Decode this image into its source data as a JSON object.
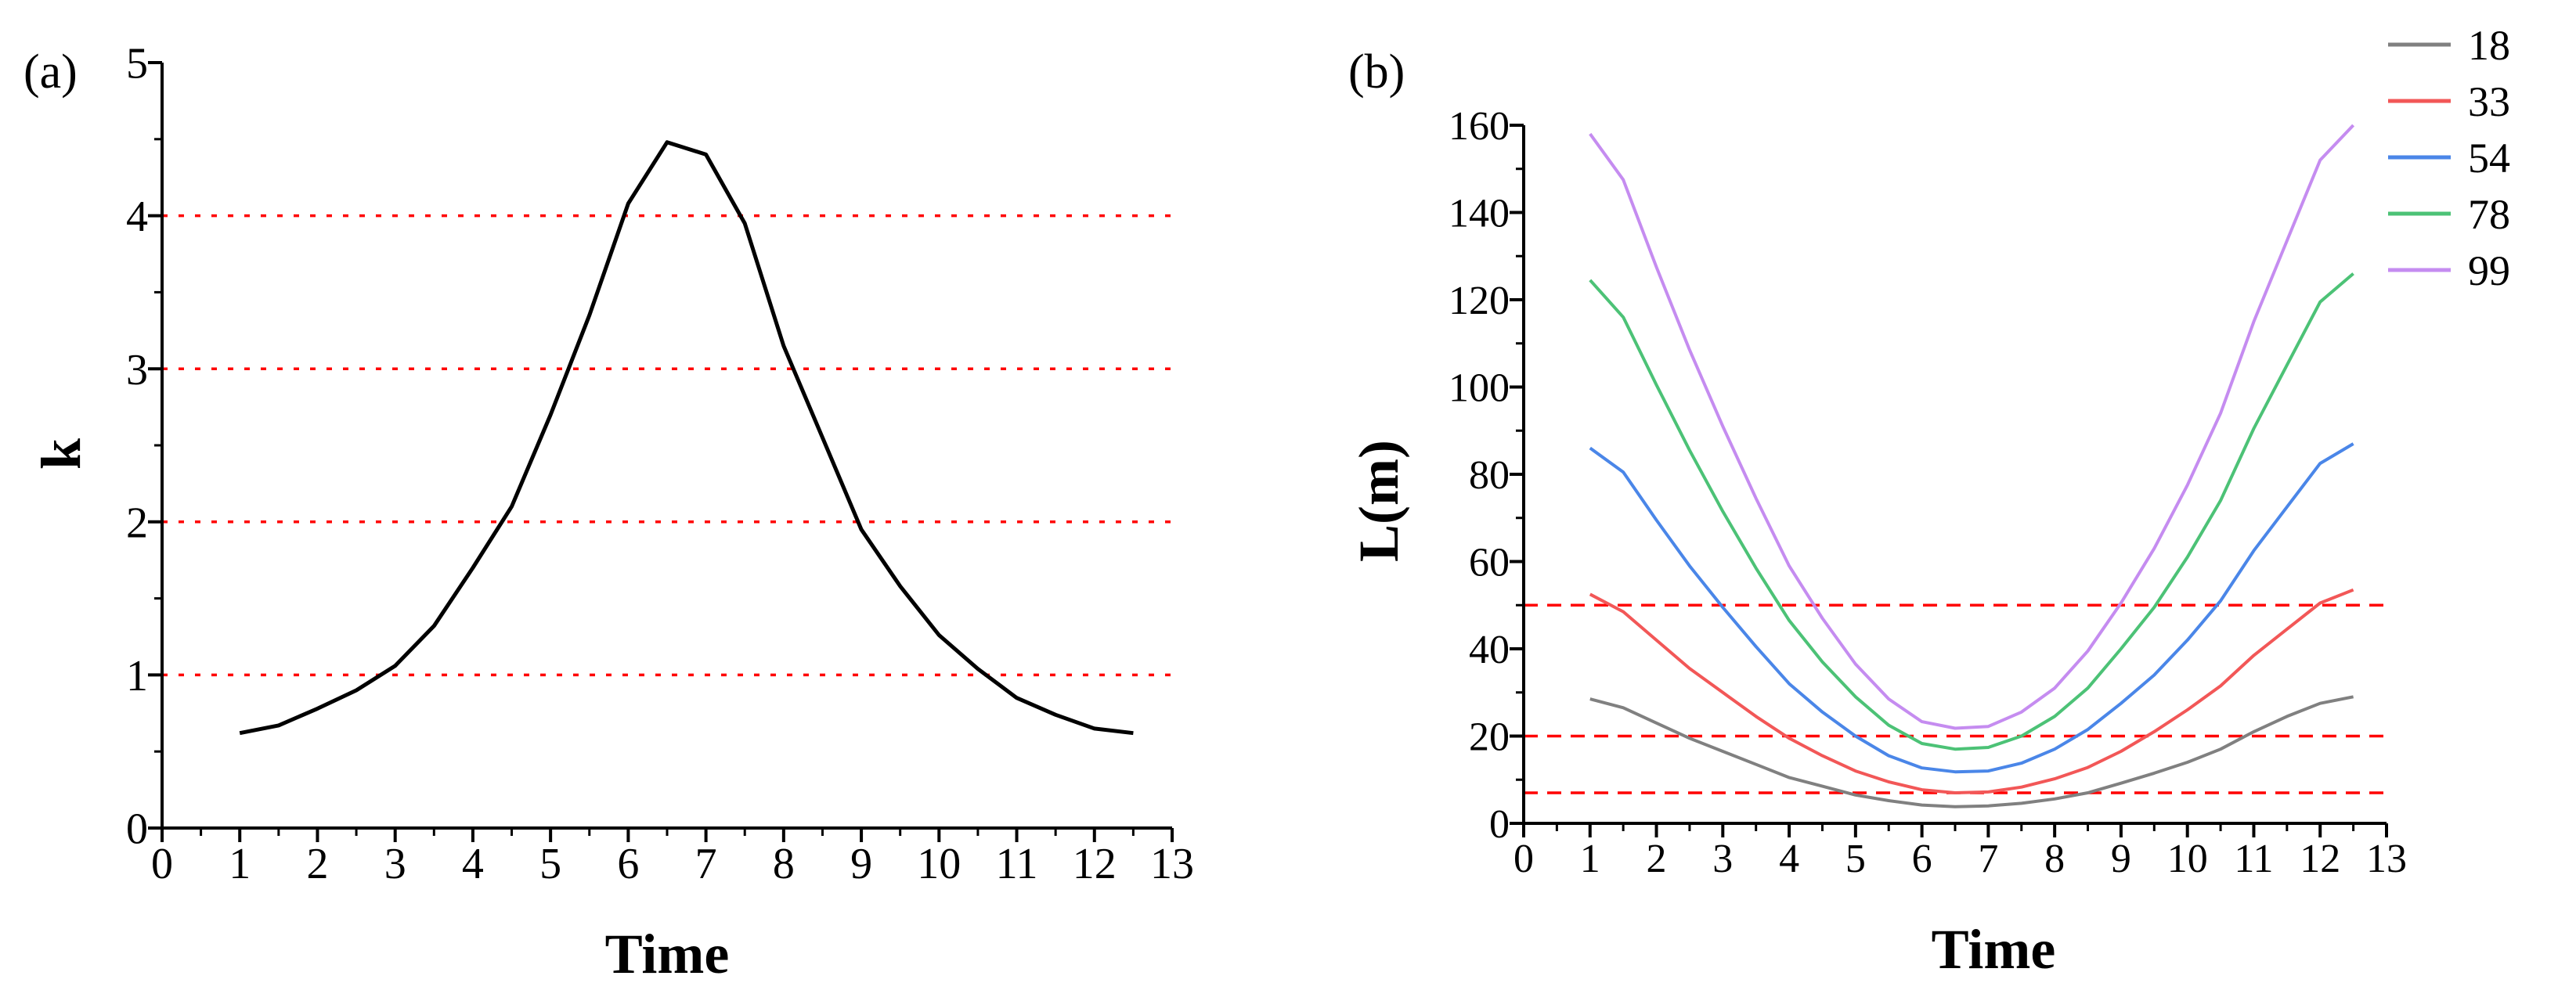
{
  "chart_data": [
    {
      "type": "line",
      "panel_label": "(a)",
      "xlabel": "Time",
      "ylabel": "k",
      "xlim": [
        0,
        13
      ],
      "ylim": [
        0,
        5
      ],
      "xticks": [
        "0",
        "1",
        "2",
        "3",
        "4",
        "5",
        "6",
        "7",
        "8",
        "9",
        "10",
        "11",
        "12",
        "13"
      ],
      "yticks": [
        "0",
        "1",
        "2",
        "3",
        "4",
        "5"
      ],
      "reference_lines": [
        1,
        2,
        3,
        4
      ],
      "reference_color": "#ff0000",
      "series": [
        {
          "name": "k",
          "color": "#000000",
          "x": [
            1,
            1.5,
            2,
            2.5,
            3,
            3.5,
            4,
            4.5,
            5,
            5.5,
            6,
            6.5,
            7,
            7.5,
            8,
            8.5,
            9,
            9.5,
            10,
            10.5,
            11,
            11.5,
            12,
            12.5
          ],
          "y": [
            0.62,
            0.67,
            0.78,
            0.9,
            1.06,
            1.32,
            1.7,
            2.1,
            2.7,
            3.35,
            4.08,
            4.48,
            4.4,
            3.95,
            3.15,
            2.55,
            1.95,
            1.58,
            1.26,
            1.04,
            0.85,
            0.74,
            0.65,
            0.62
          ]
        }
      ]
    },
    {
      "type": "line",
      "panel_label": "(b)",
      "xlabel": "Time",
      "ylabel": "L(m)",
      "xlim": [
        0,
        13
      ],
      "ylim": [
        0,
        160
      ],
      "xticks": [
        "0",
        "1",
        "2",
        "3",
        "4",
        "5",
        "6",
        "7",
        "8",
        "9",
        "10",
        "11",
        "12",
        "13"
      ],
      "yticks": [
        "0",
        "20",
        "40",
        "60",
        "80",
        "100",
        "120",
        "140",
        "160"
      ],
      "reference_lines": [
        7,
        20,
        50
      ],
      "reference_color": "#ff0000",
      "legend_position": "top-right",
      "series": [
        {
          "name": "18",
          "color": "#808080",
          "x": [
            1,
            1.5,
            2,
            2.5,
            3,
            3.5,
            4,
            4.5,
            5,
            5.5,
            6,
            6.5,
            7,
            7.5,
            8,
            8.5,
            9,
            9.5,
            10,
            10.5,
            11,
            11.5,
            12,
            12.5
          ],
          "y": [
            28.5,
            26.5,
            23,
            19.5,
            16.5,
            13.5,
            10.5,
            8.5,
            6.5,
            5.2,
            4.2,
            3.8,
            4,
            4.6,
            5.6,
            7,
            9.2,
            11.5,
            14,
            17,
            21,
            24.5,
            27.5,
            29
          ]
        },
        {
          "name": "33",
          "color": "#f25757",
          "x": [
            1,
            1.5,
            2,
            2.5,
            3,
            3.5,
            4,
            4.5,
            5,
            5.5,
            6,
            6.5,
            7,
            7.5,
            8,
            8.5,
            9,
            9.5,
            10,
            10.5,
            11,
            11.5,
            12,
            12.5
          ],
          "y": [
            52.5,
            48.5,
            42,
            35.5,
            30,
            24.5,
            19.5,
            15.5,
            12,
            9.5,
            7.7,
            7,
            7.2,
            8.3,
            10.2,
            12.8,
            16.5,
            21,
            26,
            31.5,
            38.5,
            44.5,
            50.5,
            53.5
          ]
        },
        {
          "name": "54",
          "color": "#4a86e8",
          "x": [
            1,
            1.5,
            2,
            2.5,
            3,
            3.5,
            4,
            4.5,
            5,
            5.5,
            6,
            6.5,
            7,
            7.5,
            8,
            8.5,
            9,
            9.5,
            10,
            10.5,
            11,
            11.5,
            12,
            12.5
          ],
          "y": [
            86,
            80.5,
            69.5,
            59,
            49.5,
            40.5,
            32,
            25.5,
            20,
            15.5,
            12.7,
            11.8,
            12,
            13.8,
            17,
            21.5,
            27.5,
            34,
            42,
            51,
            62.5,
            72.5,
            82.5,
            87
          ]
        },
        {
          "name": "78",
          "color": "#4cc276",
          "x": [
            1,
            1.5,
            2,
            2.5,
            3,
            3.5,
            4,
            4.5,
            5,
            5.5,
            6,
            6.5,
            7,
            7.5,
            8,
            8.5,
            9,
            9.5,
            10,
            10.5,
            11,
            11.5,
            12,
            12.5
          ],
          "y": [
            124.5,
            116,
            100.5,
            85.5,
            71.5,
            58.5,
            46.5,
            37,
            29,
            22.5,
            18.3,
            17,
            17.4,
            20,
            24.5,
            31,
            40,
            49.5,
            61,
            74,
            90.5,
            105,
            119.5,
            126
          ]
        },
        {
          "name": "99",
          "color": "#c58cf0",
          "x": [
            1,
            1.5,
            2,
            2.5,
            3,
            3.5,
            4,
            4.5,
            5,
            5.5,
            6,
            6.5,
            7,
            7.5,
            8,
            8.5,
            9,
            9.5,
            10,
            10.5,
            11,
            11.5,
            12,
            12.5
          ],
          "y": [
            158,
            147.5,
            127.5,
            108.5,
            91,
            74.5,
            59,
            47,
            36.5,
            28.5,
            23.3,
            21.8,
            22.2,
            25.5,
            31,
            39.5,
            50.5,
            63,
            77.5,
            94,
            115,
            133.5,
            152,
            160
          ]
        }
      ]
    }
  ]
}
